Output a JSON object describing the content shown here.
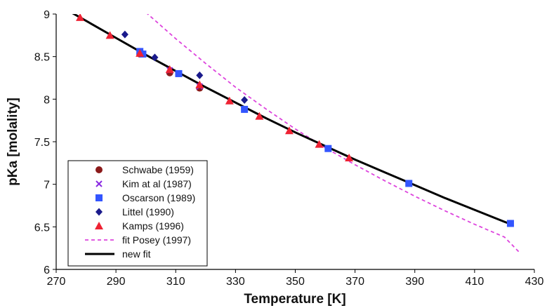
{
  "chart_data": {
    "type": "scatter",
    "title": "",
    "xlabel": "Temperature [K]",
    "ylabel": "pKa [molality]",
    "xlim": [
      270,
      430
    ],
    "ylim": [
      6,
      9
    ],
    "xticks": [
      270,
      290,
      310,
      330,
      350,
      370,
      390,
      410,
      430
    ],
    "xtick_labels": [
      "270",
      "290",
      "310",
      "330",
      "350",
      "370",
      "390",
      "410",
      "430"
    ],
    "yticks": [
      6,
      6.5,
      7,
      7.5,
      8,
      8.5,
      9
    ],
    "ytick_labels": [
      "6",
      "6.5",
      "7",
      "7.5",
      "8",
      "8.5",
      "9"
    ],
    "grid": false,
    "legend_position": "bottom-left",
    "series": [
      {
        "name": "Schwabe (1959)",
        "kind": "points",
        "marker": "circle",
        "color": "#8b1a1a",
        "points": [
          [
            298,
            8.53
          ],
          [
            308,
            8.31
          ],
          [
            318,
            8.13
          ]
        ]
      },
      {
        "name": "Kim at al (1987)",
        "kind": "points",
        "marker": "x",
        "color": "#8a2be2",
        "points": [
          [
            298,
            8.56
          ],
          [
            308,
            8.34
          ],
          [
            318,
            8.15
          ]
        ]
      },
      {
        "name": "Oscarson (1989)",
        "kind": "points",
        "marker": "square",
        "color": "#3355ff",
        "points": [
          [
            298,
            8.56
          ],
          [
            299,
            8.53
          ],
          [
            311,
            8.3
          ],
          [
            333,
            7.88
          ],
          [
            361,
            7.42
          ],
          [
            388,
            7.01
          ],
          [
            422,
            6.54
          ]
        ]
      },
      {
        "name": "Littel (1990)",
        "kind": "points",
        "marker": "diamond",
        "color": "#1a1a8c",
        "points": [
          [
            293,
            8.76
          ],
          [
            303,
            8.49
          ],
          [
            318,
            8.28
          ],
          [
            333,
            7.99
          ]
        ]
      },
      {
        "name": "Kamps (1996)",
        "kind": "points",
        "marker": "triangle",
        "color": "#ee2233",
        "points": [
          [
            278,
            8.96
          ],
          [
            288,
            8.75
          ],
          [
            298,
            8.54
          ],
          [
            308,
            8.35
          ],
          [
            318,
            8.17
          ],
          [
            328,
            7.98
          ],
          [
            338,
            7.8
          ],
          [
            348,
            7.63
          ],
          [
            358,
            7.47
          ],
          [
            368,
            7.31
          ]
        ]
      },
      {
        "name": "fit Posey (1997)",
        "kind": "line",
        "style": "dashed",
        "color": "#dd44dd",
        "points": [
          [
            300,
            9.02
          ],
          [
            310,
            8.71
          ],
          [
            320,
            8.42
          ],
          [
            330,
            8.14
          ],
          [
            340,
            7.89
          ],
          [
            350,
            7.65
          ],
          [
            360,
            7.43
          ],
          [
            370,
            7.23
          ],
          [
            380,
            7.04
          ],
          [
            390,
            6.86
          ],
          [
            400,
            6.69
          ],
          [
            410,
            6.53
          ],
          [
            420,
            6.38
          ],
          [
            425,
            6.2
          ]
        ]
      },
      {
        "name": "new fit",
        "kind": "line",
        "style": "solid",
        "color": "#000000",
        "points": [
          [
            275,
            9.02
          ],
          [
            280,
            8.92
          ],
          [
            290,
            8.72
          ],
          [
            300,
            8.52
          ],
          [
            310,
            8.33
          ],
          [
            320,
            8.14
          ],
          [
            330,
            7.96
          ],
          [
            340,
            7.78
          ],
          [
            350,
            7.61
          ],
          [
            360,
            7.45
          ],
          [
            370,
            7.29
          ],
          [
            380,
            7.14
          ],
          [
            390,
            6.99
          ],
          [
            400,
            6.84
          ],
          [
            410,
            6.7
          ],
          [
            420,
            6.56
          ],
          [
            423,
            6.52
          ]
        ]
      }
    ]
  }
}
